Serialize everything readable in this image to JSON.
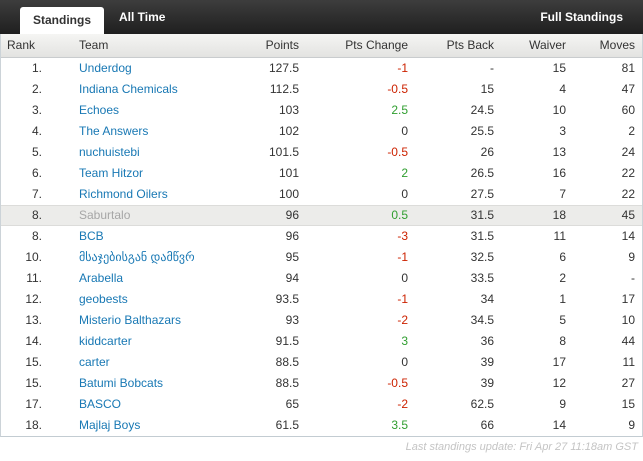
{
  "tabbar": {
    "active_tab": "Standings",
    "inactive_tab": "All Time",
    "link": "Full Standings"
  },
  "columns": [
    "Rank",
    "Team",
    "Points",
    "Pts Change",
    "Pts Back",
    "Waiver",
    "Moves"
  ],
  "rows": [
    {
      "rank": "1.",
      "team": "Underdog",
      "points": "127.5",
      "pts_change": "-1",
      "pts_back": "-",
      "waiver": "15",
      "moves": "81",
      "highlight": false
    },
    {
      "rank": "2.",
      "team": "Indiana Chemicals",
      "points": "112.5",
      "pts_change": "-0.5",
      "pts_back": "15",
      "waiver": "4",
      "moves": "47",
      "highlight": false
    },
    {
      "rank": "3.",
      "team": "Echoes",
      "points": "103",
      "pts_change": "2.5",
      "pts_back": "24.5",
      "waiver": "10",
      "moves": "60",
      "highlight": false
    },
    {
      "rank": "4.",
      "team": "The Answers",
      "points": "102",
      "pts_change": "0",
      "pts_back": "25.5",
      "waiver": "3",
      "moves": "2",
      "highlight": false
    },
    {
      "rank": "5.",
      "team": "nuchuistebi",
      "points": "101.5",
      "pts_change": "-0.5",
      "pts_back": "26",
      "waiver": "13",
      "moves": "24",
      "highlight": false
    },
    {
      "rank": "6.",
      "team": "Team Hitzor",
      "points": "101",
      "pts_change": "2",
      "pts_back": "26.5",
      "waiver": "16",
      "moves": "22",
      "highlight": false
    },
    {
      "rank": "7.",
      "team": "Richmond Oilers",
      "points": "100",
      "pts_change": "0",
      "pts_back": "27.5",
      "waiver": "7",
      "moves": "22",
      "highlight": false
    },
    {
      "rank": "8.",
      "team": "Saburtalo",
      "points": "96",
      "pts_change": "0.5",
      "pts_back": "31.5",
      "waiver": "18",
      "moves": "45",
      "highlight": true
    },
    {
      "rank": "8.",
      "team": "BCB",
      "points": "96",
      "pts_change": "-3",
      "pts_back": "31.5",
      "waiver": "11",
      "moves": "14",
      "highlight": false
    },
    {
      "rank": "10.",
      "team": "მსაჯებისგან დამწვრებ",
      "points": "95",
      "pts_change": "-1",
      "pts_back": "32.5",
      "waiver": "6",
      "moves": "9",
      "highlight": false
    },
    {
      "rank": "11.",
      "team": "Arabella",
      "points": "94",
      "pts_change": "0",
      "pts_back": "33.5",
      "waiver": "2",
      "moves": "-",
      "highlight": false
    },
    {
      "rank": "12.",
      "team": "geobests",
      "points": "93.5",
      "pts_change": "-1",
      "pts_back": "34",
      "waiver": "1",
      "moves": "17",
      "highlight": false
    },
    {
      "rank": "13.",
      "team": "Misterio Balthazars",
      "points": "93",
      "pts_change": "-2",
      "pts_back": "34.5",
      "waiver": "5",
      "moves": "10",
      "highlight": false
    },
    {
      "rank": "14.",
      "team": "kiddcarter",
      "points": "91.5",
      "pts_change": "3",
      "pts_back": "36",
      "waiver": "8",
      "moves": "44",
      "highlight": false
    },
    {
      "rank": "15.",
      "team": "carter",
      "points": "88.5",
      "pts_change": "0",
      "pts_back": "39",
      "waiver": "17",
      "moves": "11",
      "highlight": false
    },
    {
      "rank": "15.",
      "team": "Batumi Bobcats",
      "points": "88.5",
      "pts_change": "-0.5",
      "pts_back": "39",
      "waiver": "12",
      "moves": "27",
      "highlight": false
    },
    {
      "rank": "17.",
      "team": "BASCO",
      "points": "65",
      "pts_change": "-2",
      "pts_back": "62.5",
      "waiver": "9",
      "moves": "15",
      "highlight": false
    },
    {
      "rank": "18.",
      "team": "Majlaj Boys",
      "points": "61.5",
      "pts_change": "3.5",
      "pts_back": "66",
      "waiver": "14",
      "moves": "9",
      "highlight": false
    }
  ],
  "footer": {
    "last_update": "Last standings update: Fri Apr 27 11:18am GST"
  },
  "colors": {
    "positive": "#2f9e2f",
    "negative": "#cc2200",
    "link": "#1878b4",
    "highlight_row": "#ececea",
    "bar_background": "#2b2b2b"
  }
}
